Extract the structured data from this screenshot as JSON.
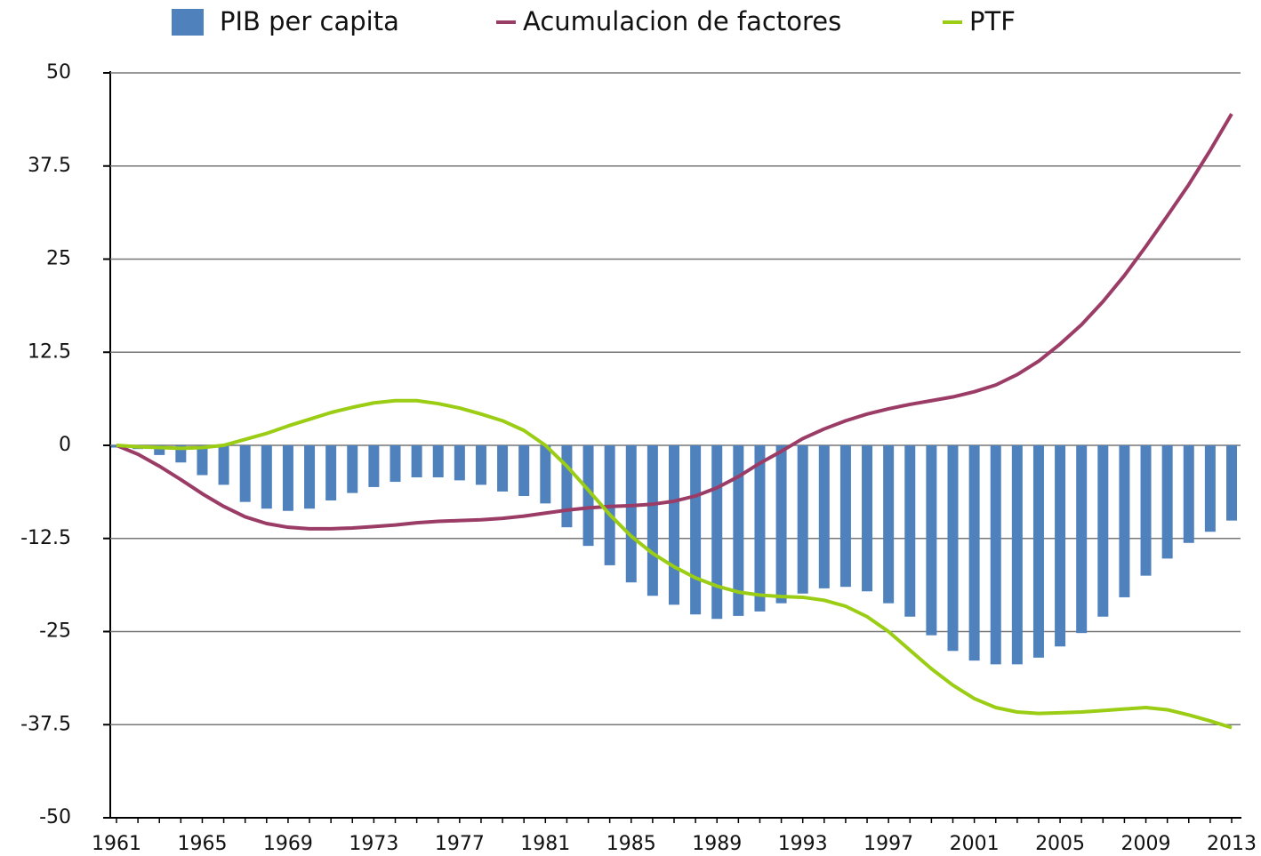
{
  "chart_data": {
    "type": "bar",
    "categories": [
      "1961",
      null,
      null,
      null,
      "1965",
      null,
      null,
      null,
      "1969",
      null,
      null,
      null,
      "1973",
      null,
      null,
      null,
      "1977",
      null,
      null,
      null,
      "1981",
      null,
      null,
      null,
      "1985",
      null,
      null,
      null,
      "1989",
      null,
      null,
      null,
      "1993",
      null,
      null,
      null,
      "1997",
      null,
      null,
      null,
      "2001",
      null,
      null,
      null,
      "2005",
      null,
      null,
      null,
      "2009",
      null,
      null,
      null,
      "2013"
    ],
    "series": [
      {
        "name": "PIB per capita",
        "type": "bar",
        "color": "#4f81bd",
        "values": [
          -0.3,
          -0.5,
          -1.3,
          -2.3,
          -4,
          -5.3,
          -7.6,
          -8.5,
          -8.8,
          -8.5,
          -7.4,
          -6.4,
          -5.6,
          -4.9,
          -4.3,
          -4.3,
          -4.7,
          -5.3,
          -6.2,
          -6.8,
          -7.8,
          -11,
          -13.5,
          -16.1,
          -18.4,
          -20.2,
          -21.4,
          -22.7,
          -23.3,
          -22.9,
          -22.3,
          -21.2,
          -19.9,
          -19.2,
          -19,
          -19.6,
          -21.2,
          -23,
          -25.5,
          -27.6,
          -28.9,
          -29.4,
          -29.4,
          -28.5,
          -27,
          -25.2,
          -23,
          -20.4,
          -17.5,
          -15.2,
          -13.1,
          -11.6,
          -10.1
        ]
      },
      {
        "name": "Acumulacion de factores",
        "type": "line",
        "color": "#9b3c66",
        "values": [
          0,
          -1.2,
          -2.8,
          -4.6,
          -6.5,
          -8.2,
          -9.6,
          -10.5,
          -11,
          -11.2,
          -11.2,
          -11.1,
          -10.9,
          -10.7,
          -10.4,
          -10.2,
          -10.1,
          -10,
          -9.8,
          -9.5,
          -9.1,
          -8.7,
          -8.4,
          -8.2,
          -8.1,
          -7.9,
          -7.5,
          -6.8,
          -5.7,
          -4.2,
          -2.4,
          -0.8,
          0.9,
          2.2,
          3.3,
          4.2,
          4.9,
          5.5,
          6,
          6.5,
          7.2,
          8.1,
          9.5,
          11.3,
          13.6,
          16.2,
          19.3,
          22.8,
          26.7,
          30.8,
          35,
          39.6,
          44.5
        ]
      },
      {
        "name": "PTF",
        "type": "line",
        "color": "#9acd14",
        "values": [
          0,
          -0.2,
          -0.3,
          -0.4,
          -0.3,
          0,
          0.8,
          1.6,
          2.6,
          3.5,
          4.4,
          5.1,
          5.7,
          6,
          6,
          5.6,
          5,
          4.2,
          3.3,
          2,
          0,
          -2.8,
          -6,
          -9.3,
          -12.2,
          -14.5,
          -16.3,
          -17.8,
          -18.9,
          -19.7,
          -20.1,
          -20.3,
          -20.4,
          -20.8,
          -21.6,
          -23,
          -25,
          -27.5,
          -30,
          -32.2,
          -34,
          -35.2,
          -35.8,
          -36,
          -35.9,
          -35.8,
          -35.6,
          -35.4,
          -35.2,
          -35.5,
          -36.2,
          -37,
          -37.9
        ]
      }
    ],
    "ylim": [
      -50,
      50
    ],
    "yticks": [
      50,
      37.5,
      25,
      12.5,
      0,
      -12.5,
      -25,
      -37.5,
      -50
    ],
    "grid": true,
    "legend": "top"
  }
}
